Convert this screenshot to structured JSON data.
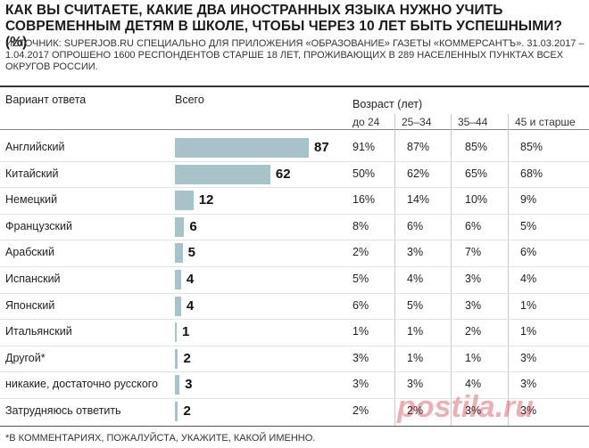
{
  "title": "КАК ВЫ СЧИТАЕТЕ, КАКИЕ ДВА ИНОСТРАННЫХ ЯЗЫКА НУЖНО УЧИТЬ СОВРЕМЕННЫМ ДЕТЯМ В ШКОЛЕ, ЧТОБЫ ЧЕРЕЗ 10 ЛЕТ БЫТЬ УСПЕШНЫМИ? (%)",
  "source": "ИСТОЧНИК: SUPERJOB.RU СПЕЦИАЛЬНО ДЛЯ ПРИЛОЖЕНИЯ «ОБРАЗОВАНИЕ» ГАЗЕТЫ «КОММЕРСАНТЪ». 31.03.2017 – 1.04.2017 ОПРОШЕНО 1600 РЕСПОНДЕНТОВ СТАРШЕ 18 ЛЕТ, ПРОЖИВАЮЩИХ В 289 НАСЕЛЕННЫХ ПУНКТАХ ВСЕХ ОКРУГОВ РОССИИ.",
  "headers": {
    "answer": "Вариант ответа",
    "total": "Всего",
    "age": "Возраст (лет)"
  },
  "age_groups": [
    "до 24",
    "25–34",
    "35–44",
    "45 и старше"
  ],
  "footnote": "*В КОММЕНТАРИЯХ, ПОЖАЛУЙСТА, УКАЖИТЕ, КАКОЙ ИМЕННО.",
  "watermark": "postila.ru",
  "colors": {
    "bar": "#a8c2c9"
  },
  "chart_data": {
    "type": "bar",
    "orientation": "horizontal",
    "title": "КАК ВЫ СЧИТАЕТЕ, КАКИЕ ДВА ИНОСТРАННЫХ ЯЗЫКА НУЖНО УЧИТЬ СОВРЕМЕННЫМ ДЕТЯМ В ШКОЛЕ, ЧТОБЫ ЧЕРЕЗ 10 ЛЕТ БЫТЬ УСПЕШНЫМИ? (%)",
    "categories": [
      "Английский",
      "Китайский",
      "Немецкий",
      "Французский",
      "Арабский",
      "Испанский",
      "Японский",
      "Итальянский",
      "Другой*",
      "никакие, достаточно русского",
      "Затрудняюсь ответить"
    ],
    "values": [
      87,
      62,
      12,
      6,
      5,
      4,
      4,
      1,
      2,
      3,
      2
    ],
    "xlim": [
      0,
      100
    ],
    "table": {
      "columns": [
        "до 24",
        "25–34",
        "35–44",
        "45 и старше"
      ],
      "rows": [
        [
          "91%",
          "87%",
          "85%",
          "85%"
        ],
        [
          "50%",
          "62%",
          "65%",
          "68%"
        ],
        [
          "16%",
          "14%",
          "10%",
          "9%"
        ],
        [
          "8%",
          "6%",
          "6%",
          "5%"
        ],
        [
          "2%",
          "3%",
          "7%",
          "6%"
        ],
        [
          "5%",
          "4%",
          "3%",
          "4%"
        ],
        [
          "6%",
          "5%",
          "3%",
          "1%"
        ],
        [
          "1%",
          "1%",
          "2%",
          "1%"
        ],
        [
          "3%",
          "1%",
          "1%",
          "3%"
        ],
        [
          "3%",
          "3%",
          "4%",
          "3%"
        ],
        [
          "2%",
          "2%",
          "3%",
          "3%"
        ]
      ]
    }
  }
}
